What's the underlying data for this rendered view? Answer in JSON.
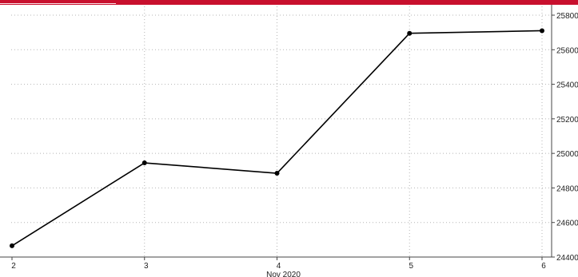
{
  "chart_data": {
    "type": "line",
    "x": [
      "2",
      "3",
      "4",
      "5",
      "6"
    ],
    "values": [
      24465,
      24945,
      24885,
      25695,
      25710
    ],
    "xlabel": "Nov 2020",
    "ylabel": "",
    "ylim": [
      24400,
      25800
    ],
    "yticks": [
      24400,
      24600,
      24800,
      25000,
      25200,
      25400,
      25600,
      25800
    ],
    "ytick_labels": [
      "24400",
      "24600",
      "24800",
      "25000",
      "25200",
      "25400",
      "25600",
      "25800"
    ],
    "grid": true,
    "y_axis_side": "right",
    "colors": {
      "line": "#000000",
      "accent_bar": "#c8102e",
      "grid": "#b5b5b5"
    }
  }
}
